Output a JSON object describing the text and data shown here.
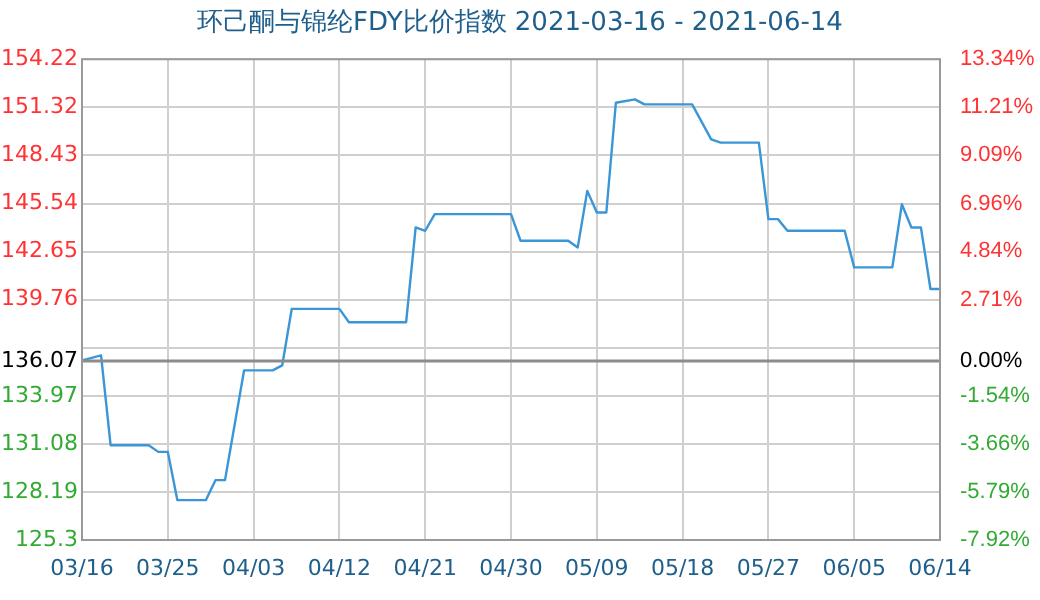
{
  "chart_data": {
    "type": "line",
    "title": "环己酮与锦纶FDY比价指数 2021-03-16 - 2021-06-14",
    "x": [
      "--03-16",
      "--03-18",
      "--03-19",
      "--03-23",
      "--03-24",
      "--03-25",
      "--03-26",
      "--03-29",
      "--03-30",
      "--03-31",
      "--04-02",
      "--04-05",
      "--04-06",
      "--04-07",
      "--04-12",
      "--04-13",
      "--04-19",
      "--04-20",
      "--04-21",
      "--04-22",
      "--04-30",
      "--05-01",
      "--05-06",
      "--05-07",
      "--05-08",
      "--05-09",
      "--05-10",
      "--05-11",
      "--05-13",
      "--05-14",
      "--05-19",
      "--05-21",
      "--05-22",
      "--05-26",
      "--05-27",
      "--05-28",
      "--05-29",
      "--06-04",
      "--06-05",
      "--06-09",
      "--06-10",
      "--06-11",
      "--06-12",
      "--06-13",
      "--06-14"
    ],
    "series": [
      {
        "color": "#3a96d6",
        "values": [
          136.1,
          136.4,
          131.0,
          131.0,
          130.6,
          130.6,
          127.7,
          127.7,
          128.9,
          128.9,
          135.5,
          135.5,
          135.8,
          139.2,
          139.2,
          138.4,
          138.4,
          144.1,
          143.9,
          144.9,
          144.9,
          143.3,
          143.3,
          142.9,
          146.3,
          145.0,
          145.0,
          151.6,
          151.8,
          151.5,
          151.5,
          149.4,
          149.2,
          149.2,
          144.6,
          144.6,
          143.9,
          143.9,
          141.7,
          141.7,
          145.5,
          144.1,
          144.1,
          140.4,
          140.4
        ]
      }
    ],
    "xlim": [
      "--03-16",
      "--06-14"
    ],
    "xticks": [
      {
        "value": "--03-16",
        "label": "03/16"
      },
      {
        "value": "--03-25",
        "label": "03/25"
      },
      {
        "value": "--04-03",
        "label": "04/03"
      },
      {
        "value": "--04-12",
        "label": "04/12"
      },
      {
        "value": "--04-21",
        "label": "04/21"
      },
      {
        "value": "--04-30",
        "label": "04/30"
      },
      {
        "value": "--05-09",
        "label": "05/09"
      },
      {
        "value": "--05-18",
        "label": "05/18"
      },
      {
        "value": "--05-27",
        "label": "05/27"
      },
      {
        "value": "--06-05",
        "label": "06/05"
      },
      {
        "value": "--06-14",
        "label": "06/14"
      }
    ],
    "ylim": [
      125.3,
      154.22
    ],
    "yticks": [
      125.3,
      128.19,
      131.08,
      133.97,
      136.07,
      {
        "value": 136.87,
        "label": null
      },
      139.76,
      142.65,
      145.54,
      148.43,
      151.32,
      154.22
    ],
    "y2lim": [
      -7.92,
      13.34
    ],
    "y2ticks": [
      {
        "value": -7.92,
        "label": "-7.92%"
      },
      {
        "value": -5.79,
        "label": "-5.79%"
      },
      {
        "value": -3.66,
        "label": "-3.66%"
      },
      {
        "value": -1.54,
        "label": "-1.54%"
      },
      {
        "value": 0,
        "label": "0.00%"
      },
      {
        "value": 0.58,
        "label": null
      },
      {
        "value": 2.71,
        "label": "2.71%"
      },
      {
        "value": 4.84,
        "label": "4.84%"
      },
      {
        "value": 6.96,
        "label": "6.96%"
      },
      {
        "value": 9.09,
        "label": "9.09%"
      },
      {
        "value": 11.21,
        "label": "11.21%"
      },
      {
        "value": 13.34,
        "label": "13.34%"
      }
    ],
    "ref_lines": [
      {
        "axis": "y",
        "value": 136.07,
        "color": "#8c8c8c"
      }
    ],
    "grid": true,
    "legend": false,
    "marker": "none",
    "line_style": "solid"
  }
}
